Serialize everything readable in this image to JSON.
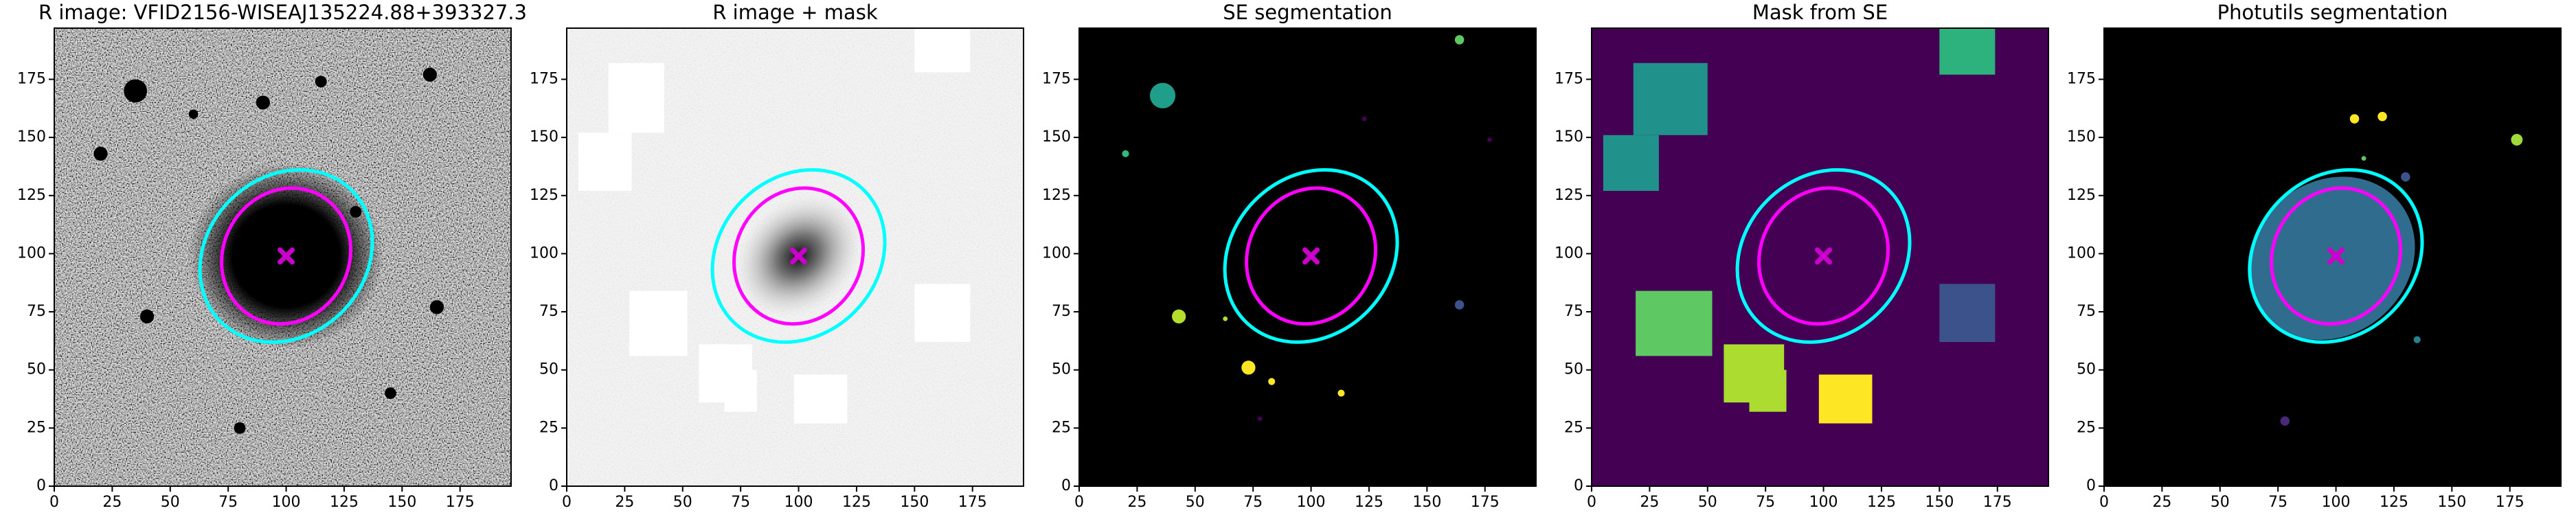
{
  "chart_data": [
    {
      "type": "image",
      "title": "R image: VFID2156-WISEAJ135224.88+393327.3",
      "image": "noise",
      "background": "#808080",
      "xlim": [
        0,
        197
      ],
      "ylim": [
        0,
        197
      ],
      "xticks": [
        0,
        25,
        50,
        75,
        100,
        125,
        150,
        175
      ],
      "yticks": [
        0,
        25,
        50,
        75,
        100,
        125,
        150,
        175
      ],
      "regions": [],
      "sources": {
        "x": [
          35,
          20,
          90,
          162,
          115,
          165,
          40,
          145,
          80,
          130,
          60
        ],
        "y": [
          170,
          143,
          165,
          177,
          174,
          77,
          73,
          40,
          25,
          118,
          160
        ],
        "sizes": [
          5,
          3,
          3,
          3,
          2.5,
          3,
          3,
          2.5,
          2.5,
          2.5,
          2
        ],
        "colors": [
          "#000000",
          "#000000",
          "#000000",
          "#000000",
          "#000000",
          "#000000",
          "#000000",
          "#000000",
          "#000000",
          "#000000",
          "#000000"
        ]
      },
      "ellipses": [
        {
          "x": 100,
          "y": 99,
          "width": 80,
          "height": 68,
          "angle": 45,
          "color": "#00ffff"
        },
        {
          "x": 100,
          "y": 99,
          "width": 60,
          "height": 54,
          "angle": 60,
          "color": "#ff00ff"
        }
      ],
      "marker": {
        "x": 100,
        "y": 99,
        "color": "#cc00cc"
      }
    },
    {
      "type": "image",
      "title": "R image + mask",
      "image": "inverted",
      "background": "#f4f4f4",
      "xlim": [
        0,
        197
      ],
      "ylim": [
        0,
        197
      ],
      "xticks": [
        0,
        25,
        50,
        75,
        100,
        125,
        150,
        175
      ],
      "yticks": [
        0,
        25,
        50,
        75,
        100,
        125,
        150,
        175
      ],
      "regions": [
        {
          "x": [
            18,
            42
          ],
          "y": [
            152,
            182
          ],
          "color": "#ffffff"
        },
        {
          "x": 5,
          "x2": 28,
          "y": [
            127,
            152
          ],
          "color": "#ffffff"
        },
        {
          "x": [
            150,
            174
          ],
          "y": [
            178,
            197
          ],
          "color": "#ffffff"
        },
        {
          "x": [
            27,
            52
          ],
          "y": [
            56,
            84
          ],
          "color": "#ffffff"
        },
        {
          "x": [
            57,
            80
          ],
          "y": [
            36,
            61
          ],
          "color": "#ffffff"
        },
        {
          "x": [
            68,
            82
          ],
          "y": [
            32,
            50
          ],
          "color": "#ffffff"
        },
        {
          "x": [
            98,
            121
          ],
          "y": [
            27,
            48
          ],
          "color": "#ffffff"
        },
        {
          "x": [
            150,
            174
          ],
          "y": [
            62,
            87
          ],
          "color": "#ffffff"
        }
      ],
      "sources": {
        "x": [],
        "y": [],
        "sizes": [],
        "colors": []
      },
      "ellipses": [
        {
          "x": 100,
          "y": 99,
          "width": 80,
          "height": 68,
          "angle": 45,
          "color": "#00ffff"
        },
        {
          "x": 100,
          "y": 99,
          "width": 60,
          "height": 54,
          "angle": 60,
          "color": "#ff00ff"
        }
      ],
      "marker": {
        "x": 100,
        "y": 99,
        "color": "#cc00cc"
      }
    },
    {
      "type": "image",
      "title": "SE segmentation",
      "image": "solid",
      "background": "#000000",
      "xlim": [
        0,
        197
      ],
      "ylim": [
        0,
        197
      ],
      "xticks": [
        0,
        25,
        50,
        75,
        100,
        125,
        150,
        175
      ],
      "yticks": [
        0,
        25,
        50,
        75,
        100,
        125,
        150,
        175
      ],
      "regions": [],
      "sources": {
        "x": [
          36,
          164,
          20,
          43,
          73,
          83,
          113,
          164,
          123,
          177,
          78,
          63
        ],
        "y": [
          168,
          192,
          143,
          73,
          51,
          45,
          40,
          78,
          158,
          149,
          29,
          72
        ],
        "sizes": [
          5.5,
          2,
          1.5,
          3,
          3,
          1.5,
          1.5,
          2,
          1,
          1,
          1,
          1
        ],
        "colors": [
          "#1f9e89",
          "#5ec962",
          "#35b779",
          "#b5de2b",
          "#fde725",
          "#fde725",
          "#fde725",
          "#3b528b",
          "#440154",
          "#440154",
          "#440154",
          "#b5de2b"
        ]
      },
      "ellipses": [
        {
          "x": 100,
          "y": 99,
          "width": 80,
          "height": 68,
          "angle": 45,
          "color": "#00ffff"
        },
        {
          "x": 100,
          "y": 99,
          "width": 60,
          "height": 54,
          "angle": 60,
          "color": "#ff00ff"
        }
      ],
      "marker": {
        "x": 100,
        "y": 99,
        "color": "#cc00cc"
      }
    },
    {
      "type": "image",
      "title": "Mask from SE",
      "image": "solid",
      "background": "#440154",
      "xlim": [
        0,
        197
      ],
      "ylim": [
        0,
        197
      ],
      "xticks": [
        0,
        25,
        50,
        75,
        100,
        125,
        150,
        175
      ],
      "yticks": [
        0,
        25,
        50,
        75,
        100,
        125,
        150,
        175
      ],
      "regions": [
        {
          "x": [
            18,
            50
          ],
          "y": [
            151,
            182
          ],
          "color": "#21918c"
        },
        {
          "x": [
            5,
            29
          ],
          "y": [
            127,
            151
          ],
          "color": "#21918c"
        },
        {
          "x": [
            150,
            174
          ],
          "y": [
            177,
            197
          ],
          "color": "#2db27d"
        },
        {
          "x": [
            19,
            52
          ],
          "y": [
            56,
            84
          ],
          "color": "#5ec962"
        },
        {
          "x": [
            57,
            83
          ],
          "y": [
            36,
            61
          ],
          "color": "#addc30"
        },
        {
          "x": [
            68,
            84
          ],
          "y": [
            32,
            50
          ],
          "color": "#addc30"
        },
        {
          "x": [
            98,
            121
          ],
          "y": [
            27,
            48
          ],
          "color": "#fde725"
        },
        {
          "x": [
            150,
            174
          ],
          "y": [
            62,
            87
          ],
          "color": "#3b528b"
        }
      ],
      "sources": {
        "x": [],
        "y": [],
        "sizes": [],
        "colors": []
      },
      "ellipses": [
        {
          "x": 100,
          "y": 99,
          "width": 80,
          "height": 68,
          "angle": 45,
          "color": "#00ffff"
        },
        {
          "x": 100,
          "y": 99,
          "width": 60,
          "height": 54,
          "angle": 60,
          "color": "#ff00ff"
        }
      ],
      "marker": {
        "x": 100,
        "y": 99,
        "color": "#cc00cc"
      }
    },
    {
      "type": "image",
      "title": "Photutils segmentation",
      "image": "solid",
      "background": "#000000",
      "xlim": [
        0,
        197
      ],
      "ylim": [
        0,
        197
      ],
      "xticks": [
        0,
        25,
        50,
        75,
        100,
        125,
        150,
        175
      ],
      "yticks": [
        0,
        25,
        50,
        75,
        100,
        125,
        150,
        175
      ],
      "regions": [],
      "sources": {
        "x": [
          108,
          120,
          178,
          135,
          78,
          130,
          112
        ],
        "y": [
          158,
          159,
          149,
          63,
          28,
          133,
          141
        ],
        "sizes": [
          2,
          2,
          2.5,
          1.5,
          2,
          2,
          1
        ],
        "colors": [
          "#fde725",
          "#fde725",
          "#a0da39",
          "#26828e",
          "#482878",
          "#3b528b",
          "#5ec962"
        ]
      },
      "ellipses": [
        {
          "x": 98,
          "y": 98,
          "width": 76,
          "height": 66,
          "angle": 40,
          "fill": "#2f6c8e"
        },
        {
          "x": 100,
          "y": 99,
          "width": 80,
          "height": 68,
          "angle": 45,
          "color": "#00ffff"
        },
        {
          "x": 100,
          "y": 99,
          "width": 60,
          "height": 54,
          "angle": 60,
          "color": "#ff00ff"
        }
      ],
      "marker": {
        "x": 100,
        "y": 99,
        "color": "#cc00cc"
      }
    }
  ]
}
